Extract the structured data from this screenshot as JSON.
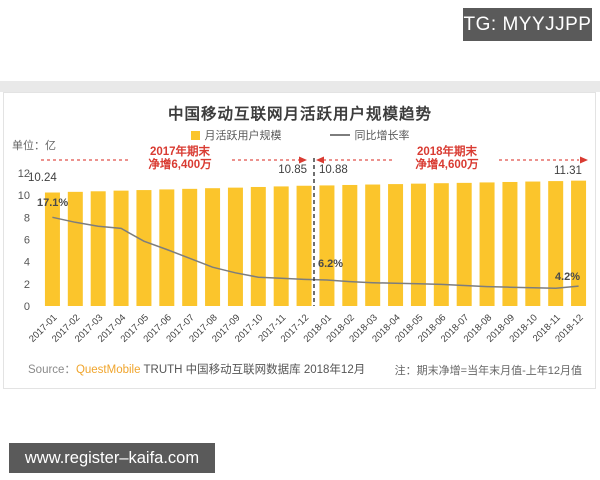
{
  "watermarks": {
    "tg_badge": "TG: MYYJJPP",
    "site_badge": "www.register–kaifa.com"
  },
  "chart_data": {
    "type": "bar",
    "subtype": "bar-line-combo",
    "title": "中国移动互联网月活跃用户规模趋势",
    "unit_label": "单位：亿",
    "legend": [
      {
        "label": "月活跃用户规模",
        "type": "bar",
        "color": "#FBC52C"
      },
      {
        "label": "同比增长率",
        "type": "line",
        "color": "#7d7d7d"
      }
    ],
    "legend_position": "top-center",
    "grid": "off",
    "ylim": [
      0,
      12
    ],
    "yticks": [
      0,
      2,
      4,
      6,
      8,
      10,
      12
    ],
    "categories": [
      "2017-01",
      "2017-02",
      "2017-03",
      "2017-04",
      "2017-05",
      "2017-06",
      "2017-07",
      "2017-08",
      "2017-09",
      "2017-10",
      "2017-11",
      "2017-12",
      "2018-01",
      "2018-02",
      "2018-03",
      "2018-04",
      "2018-05",
      "2018-06",
      "2018-07",
      "2018-08",
      "2018-09",
      "2018-10",
      "2018-11",
      "2018-12"
    ],
    "series": [
      {
        "name": "月活跃用户规模",
        "type": "bar",
        "values": [
          10.24,
          10.3,
          10.35,
          10.41,
          10.46,
          10.52,
          10.57,
          10.63,
          10.68,
          10.74,
          10.79,
          10.85,
          10.88,
          10.92,
          10.96,
          11.0,
          11.04,
          11.08,
          11.11,
          11.15,
          11.19,
          11.23,
          11.27,
          11.31
        ],
        "labeled_points": {
          "2017-01": 10.24,
          "2017-12": 10.85,
          "2018-01": 10.88,
          "2018-12": 11.31
        }
      },
      {
        "name": "同比增长率",
        "type": "line",
        "axis_values_est": [
          8.0,
          7.55,
          7.2,
          7.0,
          5.85,
          5.1,
          4.3,
          3.5,
          3.0,
          2.6,
          2.5,
          2.4,
          2.35,
          2.2,
          2.1,
          2.05,
          2.0,
          1.95,
          1.85,
          1.75,
          1.7,
          1.65,
          1.6,
          1.8
        ],
        "labeled_points": {
          "2017-01": "17.1%",
          "2018-01": "6.2%",
          "2018-12": "4.2%"
        }
      }
    ],
    "value_labels": {
      "first_bar": "10.24",
      "dec2017": "10.85",
      "jan2018": "10.88",
      "dec2018": "11.31",
      "rate_start": "17.1%",
      "rate_jan2018": "6.2%",
      "rate_end": "4.2%"
    },
    "annotations": {
      "period1": {
        "line1": "2017年期末",
        "line2": "净增6,400万"
      },
      "period2": {
        "line1": "2018年期末",
        "line2": "净增4,600万"
      }
    },
    "source": {
      "prefix": "Source：",
      "brand": "QuestMobile",
      "rest": " TRUTH 中国移动互联网数据库 2018年12月"
    },
    "note": "注：期末净增=当年末月值-上年12月值"
  },
  "colors": {
    "bar_yellow": "#FBC52C",
    "line_gray": "#7d7d7d",
    "annotation_red": "#D93B32",
    "annotation_dash_red": "#E0524A",
    "divider_black": "#222222",
    "badge_bg": "#5A5A5A",
    "strip_gray": "#E9E9E9"
  }
}
